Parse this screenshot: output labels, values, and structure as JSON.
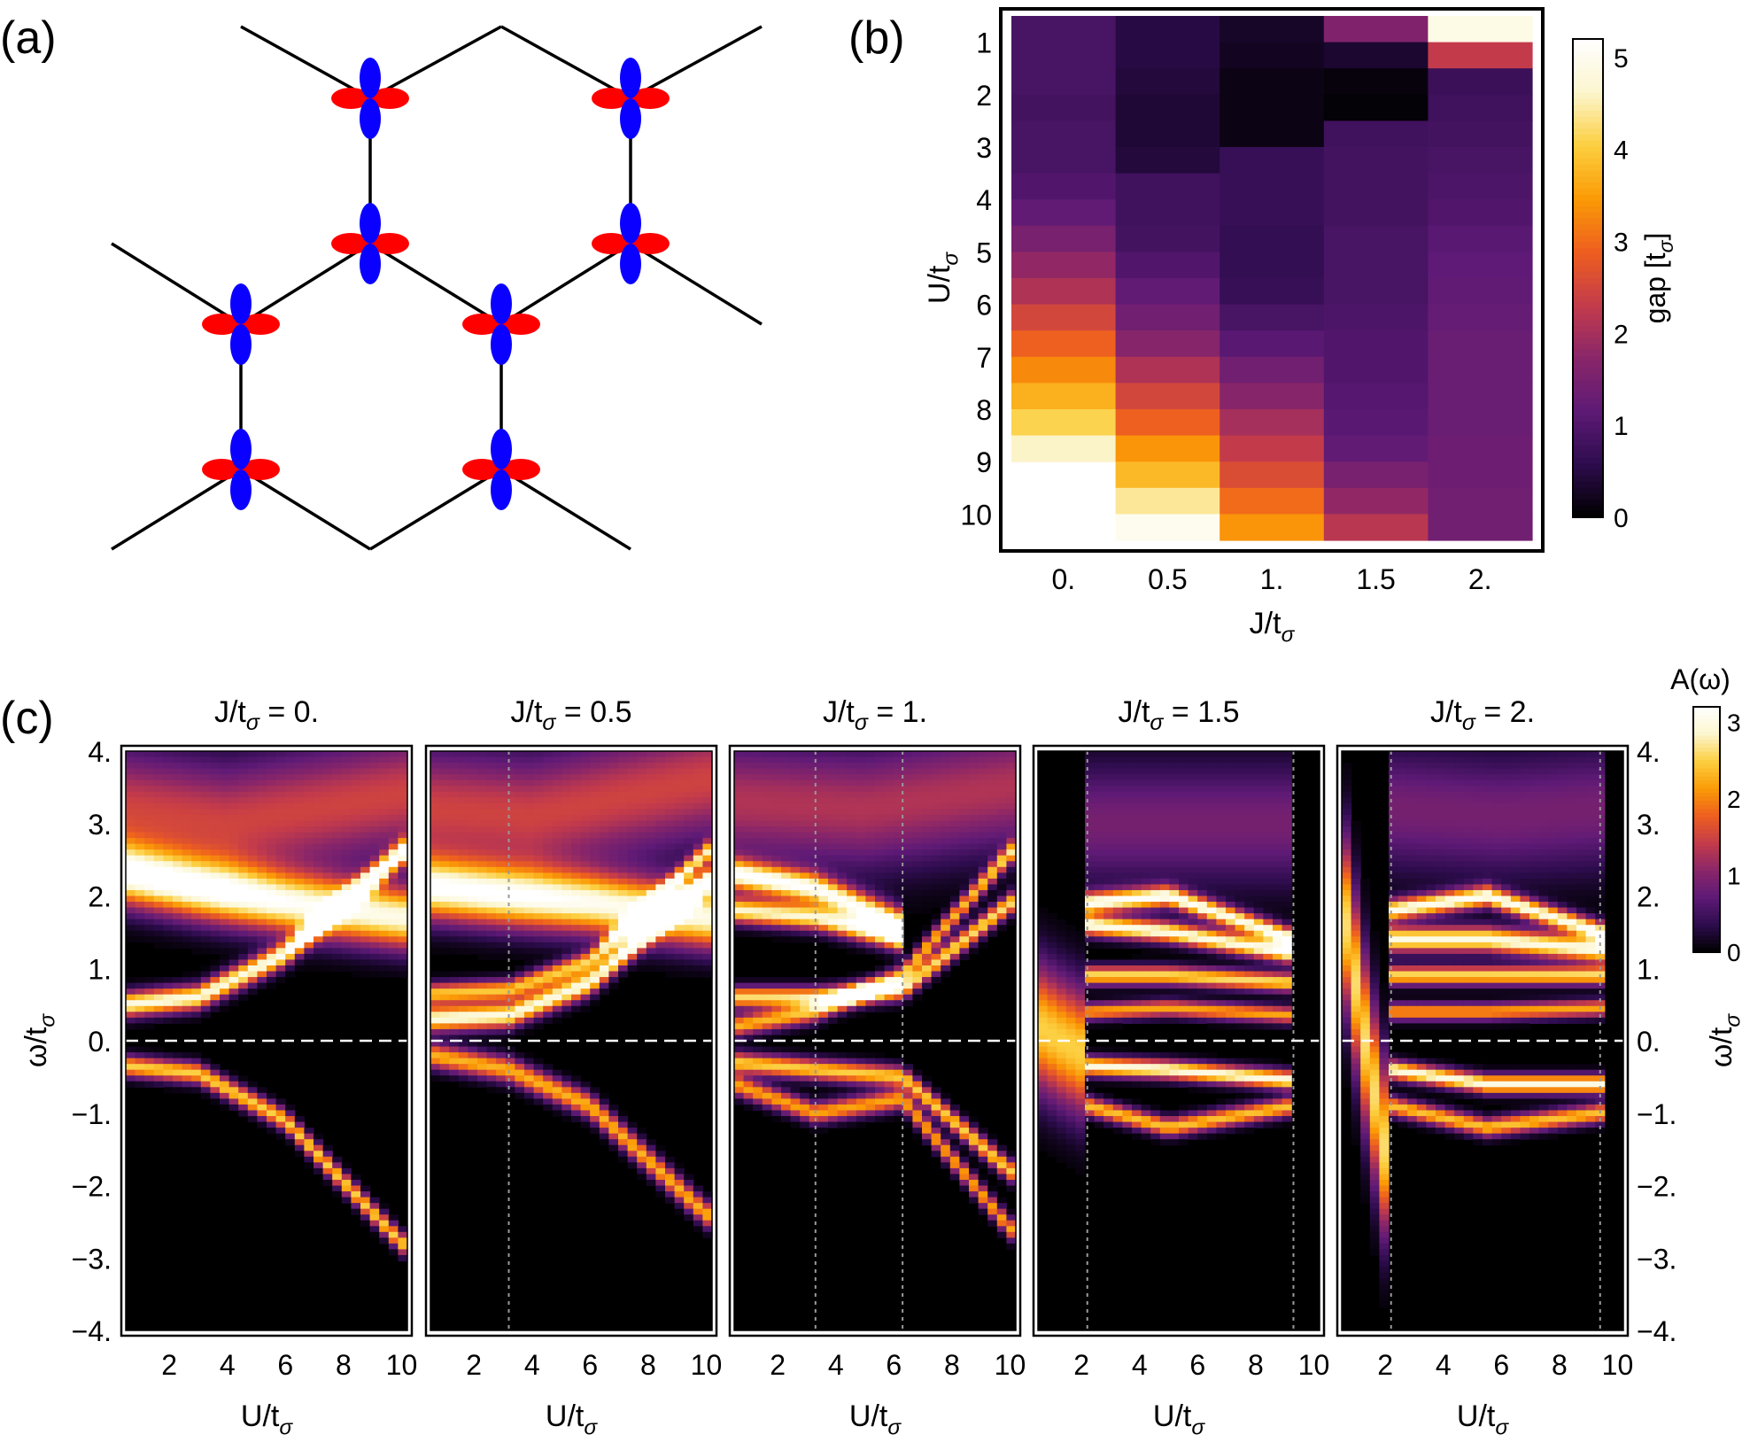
{
  "panel_labels": {
    "a": "(a)",
    "b": "(b)",
    "c": "(c)"
  },
  "colors": {
    "lobe_in_plane": "#ff0000",
    "lobe_out_of_plane": "#0a00ff",
    "bond": "#000000",
    "colormap": [
      "#000000",
      "#2d0c4d",
      "#5e1a76",
      "#8a2669",
      "#c43b4a",
      "#ee5f1f",
      "#fb9b06",
      "#fccf40",
      "#fcf6cf",
      "#ffffff"
    ]
  },
  "panel_a": {
    "description_shown": "honeycomb lattice with orbitals"
  },
  "chart_data": [
    {
      "id": "b",
      "type": "heatmap",
      "xlabel": "J/t",
      "xlabel_sub": "σ",
      "ylabel": "U/t",
      "ylabel_sub": "σ",
      "x_categories": [
        "0.",
        "0.5",
        "1.",
        "1.5",
        "2."
      ],
      "y_categories": [
        "1",
        "2",
        "3",
        "4",
        "5",
        "6",
        "7",
        "8",
        "9",
        "10"
      ],
      "colorbar_label": "gap [t",
      "colorbar_label_sub": "σ",
      "colorbar_label_end": "]",
      "colorbar_ticks": [
        "0",
        "1",
        "2",
        "3",
        "4",
        "5"
      ],
      "zlim": [
        0,
        5.2
      ],
      "grid_note": "rows in steps of 0.5 from U=1 to U=10",
      "values": [
        [
          0.9,
          0.5,
          0.3,
          1.6,
          4.9
        ],
        [
          0.9,
          0.5,
          0.25,
          0.35,
          2.3
        ],
        [
          0.9,
          0.45,
          0.15,
          0.1,
          0.75
        ],
        [
          0.85,
          0.4,
          0.15,
          0.05,
          0.8
        ],
        [
          0.9,
          0.4,
          0.15,
          0.8,
          0.85
        ],
        [
          0.9,
          0.45,
          0.7,
          0.85,
          0.9
        ],
        [
          1.0,
          0.8,
          0.7,
          0.85,
          0.95
        ],
        [
          1.2,
          0.8,
          0.7,
          0.85,
          1.0
        ],
        [
          1.5,
          0.85,
          0.65,
          0.9,
          1.1
        ],
        [
          1.8,
          1.0,
          0.65,
          0.9,
          1.15
        ],
        [
          2.1,
          1.2,
          0.7,
          0.9,
          1.2
        ],
        [
          2.5,
          1.4,
          0.9,
          0.95,
          1.25
        ],
        [
          2.9,
          1.7,
          1.1,
          1.0,
          1.3
        ],
        [
          3.3,
          2.1,
          1.4,
          1.0,
          1.3
        ],
        [
          3.7,
          2.5,
          1.7,
          1.05,
          1.3
        ],
        [
          4.1,
          2.9,
          2.0,
          1.1,
          1.3
        ],
        [
          4.6,
          3.4,
          2.3,
          1.2,
          1.35
        ],
        [
          null,
          3.8,
          2.6,
          1.5,
          1.35
        ],
        [
          null,
          4.4,
          3.0,
          1.8,
          1.4
        ],
        [
          null,
          5.0,
          3.4,
          2.2,
          1.4
        ]
      ]
    },
    {
      "id": "c",
      "type": "heatmap",
      "ylabel": "ω/t",
      "ylabel_sub": "σ",
      "xlabel": "U/t",
      "xlabel_sub": "σ",
      "x_ticks": [
        "2",
        "4",
        "6",
        "8",
        "10"
      ],
      "y_ticks": [
        "4.",
        "3.",
        "2.",
        "1.",
        "0.",
        "−1.",
        "−2.",
        "−3.",
        "−4."
      ],
      "xlim": [
        0.5,
        10.2
      ],
      "ylim": [
        -4,
        4
      ],
      "colorbar_label": "A(ω)",
      "colorbar_ticks": [
        "0",
        "1",
        "2",
        "3"
      ],
      "zlim": [
        0,
        3.2
      ],
      "panels": [
        {
          "title": "J/t",
          "title_sub": "σ",
          "title_value": " = 0.",
          "transitions": [],
          "bands": [
            {
              "U": [
                0.5,
                3,
                6,
                10
              ],
              "w": [
                2.3,
                2.1,
                1.9,
                1.7
              ],
              "amp": 3.0,
              "width": 0.3
            },
            {
              "U": [
                0.5,
                3,
                6,
                10
              ],
              "w": [
                0.5,
                0.6,
                1.2,
                2.6
              ],
              "amp": 3.0,
              "width": 0.12
            },
            {
              "U": [
                0.5,
                3,
                6,
                10
              ],
              "w": [
                -0.35,
                -0.45,
                -1.1,
                -2.8
              ],
              "amp": 2.5,
              "width": 0.1
            },
            {
              "U": [
                0.5,
                4,
                10
              ],
              "w": [
                3.2,
                3.0,
                3.4
              ],
              "amp": 1.5,
              "width": 0.6
            }
          ]
        },
        {
          "title": "J/t",
          "title_sub": "σ",
          "title_value": " = 0.5",
          "transitions": [
            3.2
          ],
          "bands": [
            {
              "U": [
                0.5,
                3,
                6,
                10
              ],
              "w": [
                2.1,
                2.0,
                1.9,
                1.7
              ],
              "amp": 3.0,
              "width": 0.3
            },
            {
              "U": [
                0.5,
                3.2,
                6,
                10
              ],
              "w": [
                0.3,
                0.35,
                0.8,
                2.2
              ],
              "amp": 3.0,
              "width": 0.12
            },
            {
              "U": [
                0.5,
                3.2,
                6,
                10
              ],
              "w": [
                0.65,
                0.7,
                1.1,
                2.6
              ],
              "amp": 2.4,
              "width": 0.1
            },
            {
              "U": [
                0.5,
                3.2,
                6,
                10
              ],
              "w": [
                -0.2,
                -0.4,
                -0.9,
                -2.4
              ],
              "amp": 2.3,
              "width": 0.12
            },
            {
              "U": [
                0.5,
                4,
                10
              ],
              "w": [
                3.2,
                3.1,
                3.6
              ],
              "amp": 1.5,
              "width": 0.6
            }
          ]
        },
        {
          "title": "J/t",
          "title_sub": "σ",
          "title_value": " = 1.",
          "transitions": [
            3.3,
            6.3
          ],
          "bands": [
            {
              "U": [
                0.5,
                3.3,
                6.3
              ],
              "w": [
                2.3,
                2.1,
                1.6
              ],
              "amp": 3.0,
              "width": 0.15
            },
            {
              "U": [
                0.5,
                3.3,
                6.3
              ],
              "w": [
                1.8,
                1.7,
                1.4
              ],
              "amp": 2.8,
              "width": 0.12
            },
            {
              "U": [
                0.5,
                3.3,
                6.3,
                10
              ],
              "w": [
                0.6,
                0.6,
                0.7,
                1.9
              ],
              "amp": 2.6,
              "width": 0.1
            },
            {
              "U": [
                0.5,
                3.3,
                6.3,
                10
              ],
              "w": [
                0.2,
                0.4,
                0.9,
                2.6
              ],
              "amp": 2.3,
              "width": 0.1
            },
            {
              "U": [
                0.5,
                3.3,
                6.3,
                10
              ],
              "w": [
                -0.3,
                -0.4,
                -0.5,
                -1.8
              ],
              "amp": 2.5,
              "width": 0.1
            },
            {
              "U": [
                0.5,
                3.3,
                6.3,
                10
              ],
              "w": [
                -0.6,
                -1.0,
                -0.8,
                -2.6
              ],
              "amp": 2.2,
              "width": 0.1
            },
            {
              "U": [
                0.5,
                5,
                10
              ],
              "w": [
                3.3,
                3.2,
                3.5
              ],
              "amp": 1.3,
              "width": 0.6
            }
          ]
        },
        {
          "title": "J/t",
          "title_sub": "σ",
          "title_value": " = 1.5",
          "transitions": [
            2.2,
            9.3
          ],
          "bands": [
            {
              "U": [
                2.2,
                5,
                9.3
              ],
              "w": [
                1.9,
                2.0,
                1.4
              ],
              "amp": 3.0,
              "width": 0.1
            },
            {
              "U": [
                2.2,
                5,
                9.3
              ],
              "w": [
                1.6,
                1.5,
                1.2
              ],
              "amp": 3.0,
              "width": 0.1
            },
            {
              "U": [
                2.2,
                5,
                9.3
              ],
              "w": [
                0.9,
                0.9,
                0.8
              ],
              "amp": 2.6,
              "width": 0.09
            },
            {
              "U": [
                2.2,
                5,
                9.3
              ],
              "w": [
                0.4,
                0.45,
                0.35
              ],
              "amp": 2.2,
              "width": 0.08
            },
            {
              "U": [
                2.2,
                5,
                9.3
              ],
              "w": [
                -0.35,
                -0.4,
                -0.55
              ],
              "amp": 3.0,
              "width": 0.09
            },
            {
              "U": [
                2.2,
                5,
                9.3
              ],
              "w": [
                -0.9,
                -1.2,
                -0.9
              ],
              "amp": 2.4,
              "width": 0.09
            },
            {
              "U": [
                0.5,
                1.3,
                2.2
              ],
              "w": [
                0.2,
                0.0,
                -0.2
              ],
              "amp": 2.5,
              "width": 0.6
            },
            {
              "U": [
                2.2,
                6,
                9.3
              ],
              "w": [
                3.0,
                3.0,
                3.0
              ],
              "amp": 0.9,
              "width": 0.6
            }
          ]
        },
        {
          "title": "J/t",
          "title_sub": "σ",
          "title_value": " = 2.",
          "transitions": [
            2.2,
            9.4
          ],
          "bands": [
            {
              "U": [
                2.2,
                5.5,
                9.4
              ],
              "w": [
                1.8,
                2.0,
                1.5
              ],
              "amp": 3.0,
              "width": 0.1
            },
            {
              "U": [
                2.2,
                5.5,
                9.4
              ],
              "w": [
                1.4,
                1.4,
                1.25
              ],
              "amp": 3.0,
              "width": 0.12
            },
            {
              "U": [
                2.2,
                5.5,
                9.4
              ],
              "w": [
                0.9,
                0.9,
                0.9
              ],
              "amp": 2.6,
              "width": 0.09
            },
            {
              "U": [
                2.2,
                5.5,
                9.4
              ],
              "w": [
                0.4,
                0.4,
                0.45
              ],
              "amp": 2.2,
              "width": 0.08
            },
            {
              "U": [
                2.2,
                5.5,
                9.4
              ],
              "w": [
                -0.4,
                -0.6,
                -0.6
              ],
              "amp": 3.0,
              "width": 0.09
            },
            {
              "U": [
                2.2,
                5.5,
                9.4
              ],
              "w": [
                -0.9,
                -1.2,
                -1.0
              ],
              "amp": 2.4,
              "width": 0.09
            },
            {
              "U": [
                0.5,
                1.3,
                2.2
              ],
              "w": [
                2.0,
                0.0,
                -2.0
              ],
              "amp": 2.6,
              "width": 0.8
            },
            {
              "U": [
                2.2,
                6,
                9.4
              ],
              "w": [
                3.2,
                3.1,
                3.2
              ],
              "amp": 0.9,
              "width": 0.6
            }
          ]
        }
      ]
    }
  ]
}
